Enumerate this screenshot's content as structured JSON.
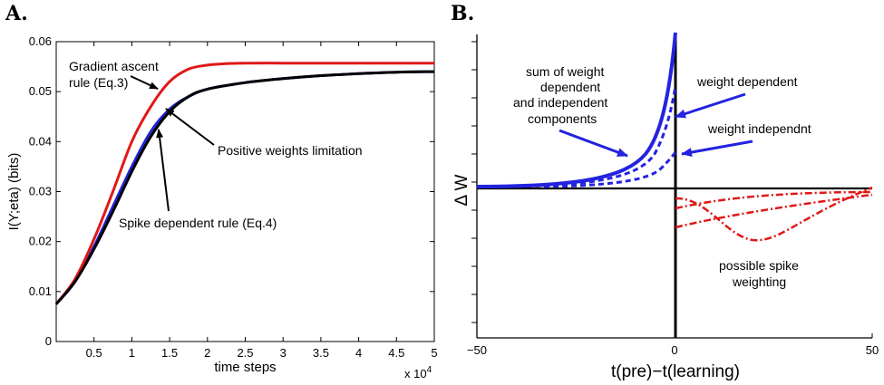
{
  "chart_data": [
    {
      "type": "line",
      "panel_label": "A.",
      "xlabel": "time steps",
      "ylabel": "I(Y;eta) (bits)",
      "x_multiplier": "x 10",
      "x_multiplier_exp": "4",
      "xlim": [
        0,
        5
      ],
      "ylim": [
        0,
        0.06
      ],
      "xticks": [
        {
          "v": 0.5,
          "label": "0.5"
        },
        {
          "v": 1,
          "label": "1"
        },
        {
          "v": 1.5,
          "label": "1.5"
        },
        {
          "v": 2,
          "label": "2"
        },
        {
          "v": 2.5,
          "label": "2.5"
        },
        {
          "v": 3,
          "label": "3"
        },
        {
          "v": 3.5,
          "label": "3.5"
        },
        {
          "v": 4,
          "label": "4"
        },
        {
          "v": 4.5,
          "label": "4.5"
        },
        {
          "v": 5,
          "label": "5"
        }
      ],
      "yticks": [
        {
          "v": 0,
          "label": "0"
        },
        {
          "v": 0.01,
          "label": "0.01"
        },
        {
          "v": 0.02,
          "label": "0.02"
        },
        {
          "v": 0.03,
          "label": "0.03"
        },
        {
          "v": 0.04,
          "label": "0.04"
        },
        {
          "v": 0.05,
          "label": "0.05"
        },
        {
          "v": 0.06,
          "label": "0.06"
        }
      ],
      "series": [
        {
          "key": "blue",
          "color": "#2323d6",
          "x": [
            0,
            0.25,
            0.5,
            0.75,
            1.0,
            1.25,
            1.5,
            1.75,
            2.0,
            2.5,
            3.0,
            3.5,
            4.0,
            4.5,
            5.0
          ],
          "y": [
            0.0075,
            0.012,
            0.019,
            0.027,
            0.035,
            0.042,
            0.0465,
            0.049,
            0.0505,
            0.0518,
            0.0526,
            0.0532,
            0.0536,
            0.0539,
            0.054
          ]
        },
        {
          "key": "red",
          "color": "#e01818",
          "x": [
            0,
            0.25,
            0.5,
            0.75,
            1.0,
            1.25,
            1.5,
            1.75,
            2.0,
            2.25,
            2.5,
            3.0,
            3.5,
            4.0,
            4.5,
            5.0
          ],
          "y": [
            0.0075,
            0.0125,
            0.0205,
            0.03,
            0.04,
            0.047,
            0.052,
            0.0545,
            0.0553,
            0.0556,
            0.0557,
            0.0557,
            0.0557,
            0.0557,
            0.0557,
            0.0557
          ]
        },
        {
          "key": "black",
          "color": "#000000",
          "x": [
            0,
            0.25,
            0.5,
            0.75,
            1.0,
            1.25,
            1.5,
            1.75,
            2.0,
            2.5,
            3.0,
            3.5,
            4.0,
            4.5,
            5.0
          ],
          "y": [
            0.0075,
            0.012,
            0.0185,
            0.026,
            0.034,
            0.041,
            0.046,
            0.049,
            0.0505,
            0.0518,
            0.0526,
            0.0532,
            0.0536,
            0.0539,
            0.054
          ]
        }
      ],
      "annotations": {
        "gradient_line1": "Gradient ascent",
        "gradient_line2": "rule (Eq.3)",
        "positive": "Positive weights limitation",
        "spike": "Spike dependent rule (Eq.4)"
      }
    },
    {
      "type": "line",
      "panel_label": "B.",
      "xlabel": "t(pre)−t(learning)",
      "ylabel": "Δ W",
      "xlim": [
        -50,
        50
      ],
      "xticks": [
        {
          "v": -50,
          "label": "−50"
        },
        {
          "v": 0,
          "label": "0"
        },
        {
          "v": 50,
          "label": "50"
        }
      ],
      "colors": {
        "blue": "#2323e0",
        "red": "#e01818"
      },
      "annotations": {
        "sum_line1": "sum of weight",
        "sum_line2": "dependent",
        "sum_line3": "and independent",
        "sum_line4": "components",
        "weight_dependent": "weight dependent",
        "weight_independent": "weight independnt",
        "spike_line1": "possible spike",
        "spike_line2": "weighting"
      }
    }
  ]
}
